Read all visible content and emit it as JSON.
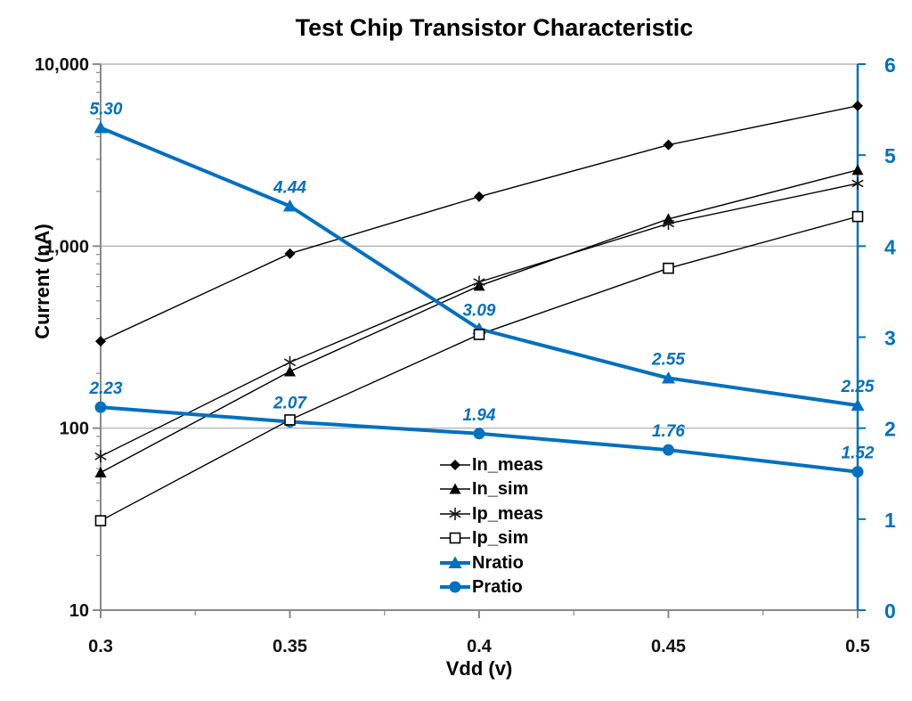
{
  "title": "Test Chip Transistor Characteristic",
  "colors": {
    "accent_blue": "#0070C0",
    "gridline": "#A6A6A6",
    "axis_gray": "#8A8A8A",
    "series_black": "#000000"
  },
  "chart_data": {
    "type": "line",
    "title": "Test Chip Transistor Characteristic",
    "xlabel": "Vdd (v)",
    "x": [
      0.3,
      0.35,
      0.4,
      0.45,
      0.5
    ],
    "x_range": [
      0.3,
      0.5
    ],
    "x_tick_labels": [
      "0.3",
      "0.35",
      "0.4",
      "0.45",
      "0.5"
    ],
    "left_axis": {
      "label": "Current (nA)",
      "scale": "log",
      "range": [
        10,
        10000
      ],
      "tick_values": [
        10000,
        1000,
        100,
        10
      ],
      "tick_labels": [
        "10,000",
        "1,000",
        "100",
        "10"
      ]
    },
    "right_axis": {
      "scale": "linear",
      "range": [
        0,
        6
      ],
      "tick_values": [
        6,
        5,
        4,
        3,
        2,
        1,
        0
      ],
      "tick_labels": [
        "6",
        "5",
        "4",
        "3",
        "2",
        "1",
        "0"
      ]
    },
    "grid": "horizontal-major",
    "legend_position": "inside-bottom-center",
    "series": [
      {
        "name": "In_meas",
        "axis": "left",
        "marker": "diamond",
        "color": "#000000",
        "thick": false,
        "values": [
          300,
          910,
          1870,
          3600,
          5900
        ]
      },
      {
        "name": "In_sim",
        "axis": "left",
        "marker": "triangle",
        "color": "#000000",
        "thick": false,
        "values": [
          57,
          205,
          605,
          1410,
          2620
        ]
      },
      {
        "name": "Ip_meas",
        "axis": "left",
        "marker": "asterisk",
        "color": "#000000",
        "thick": false,
        "values": [
          70,
          230,
          635,
          1330,
          2210
        ]
      },
      {
        "name": "Ip_sim",
        "axis": "left",
        "marker": "square-open",
        "color": "#000000",
        "thick": false,
        "values": [
          31,
          111,
          327,
          756,
          1454
        ]
      },
      {
        "name": "Nratio",
        "axis": "right",
        "marker": "triangle-filled",
        "color": "#0070C0",
        "thick": true,
        "values": [
          5.3,
          4.44,
          3.09,
          2.55,
          2.25
        ],
        "point_labels": [
          "5.30",
          "4.44",
          "3.09",
          "2.55",
          "2.25"
        ]
      },
      {
        "name": "Pratio",
        "axis": "right",
        "marker": "circle",
        "color": "#0070C0",
        "thick": true,
        "values": [
          2.23,
          2.07,
          1.94,
          1.76,
          1.52
        ],
        "point_labels": [
          "2.23",
          "2.07",
          "1.94",
          "1.76",
          "1.52"
        ]
      }
    ]
  }
}
